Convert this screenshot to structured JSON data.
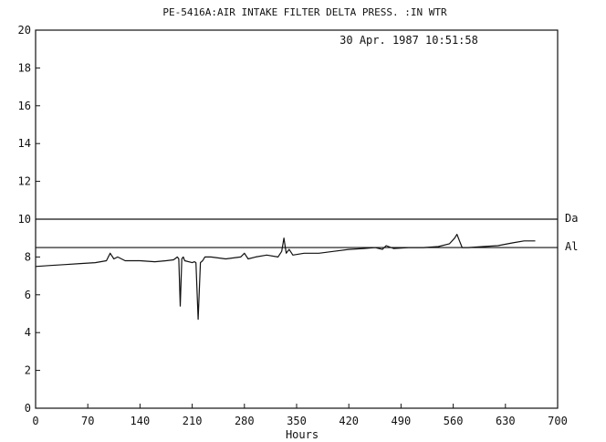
{
  "chart_data": {
    "type": "line",
    "title": "PE-5416A:AIR INTAKE FILTER DELTA PRESS. :IN WTR",
    "timestamp": "30 Apr. 1987 10:51:58",
    "xlabel": "Hours",
    "ylabel": "",
    "xlim": [
      0,
      700
    ],
    "ylim": [
      0,
      20
    ],
    "xticks": [
      "0",
      "70",
      "140",
      "210",
      "280",
      "350",
      "420",
      "490",
      "560",
      "630",
      "700"
    ],
    "yticks": [
      "0",
      "2",
      "4",
      "6",
      "8",
      "10",
      "12",
      "14",
      "16",
      "18",
      "20"
    ],
    "grid": false,
    "reference_lines": [
      {
        "label": "Da",
        "value": 10.0
      },
      {
        "label": "Al",
        "value": 8.5
      }
    ],
    "series": [
      {
        "name": "",
        "x": [
          0,
          20,
          40,
          60,
          80,
          95,
          100,
          105,
          110,
          120,
          140,
          160,
          175,
          185,
          190,
          192,
          194,
          196,
          198,
          200,
          210,
          213,
          215,
          218,
          221,
          224,
          227,
          235,
          255,
          275,
          280,
          285,
          295,
          310,
          325,
          330,
          333,
          336,
          340,
          345,
          360,
          380,
          400,
          420,
          440,
          455,
          465,
          470,
          480,
          500,
          520,
          540,
          555,
          562,
          565,
          568,
          572,
          580,
          600,
          620,
          640,
          655,
          670
        ],
        "y": [
          7.5,
          7.55,
          7.6,
          7.65,
          7.7,
          7.8,
          8.2,
          7.9,
          8.0,
          7.8,
          7.8,
          7.75,
          7.8,
          7.85,
          8.0,
          7.9,
          5.4,
          7.9,
          8.0,
          7.8,
          7.7,
          7.75,
          7.7,
          4.7,
          7.7,
          7.8,
          8.0,
          8.0,
          7.9,
          8.0,
          8.2,
          7.9,
          8.0,
          8.1,
          8.0,
          8.3,
          9.0,
          8.2,
          8.4,
          8.1,
          8.2,
          8.2,
          8.3,
          8.4,
          8.45,
          8.5,
          8.4,
          8.6,
          8.45,
          8.5,
          8.5,
          8.55,
          8.7,
          9.0,
          9.2,
          8.9,
          8.5,
          8.5,
          8.55,
          8.6,
          8.75,
          8.85,
          8.85
        ]
      }
    ]
  }
}
